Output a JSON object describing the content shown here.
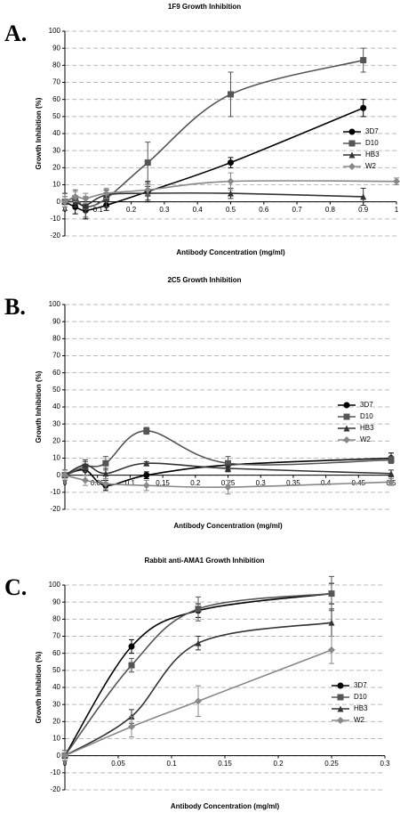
{
  "chart_data": [
    {
      "type": "line",
      "panel_label": "A.",
      "title": "1F9 Growth Inhibition",
      "x_label": "Antibody Concentration (mg/ml)",
      "y_label": "Growth Inhibition (%)",
      "xlim": [
        0,
        1
      ],
      "xticks": [
        0,
        0.1,
        0.2,
        0.3,
        0.4,
        0.5,
        0.6,
        0.7,
        0.8,
        0.9,
        1
      ],
      "ylim": [
        -20,
        100
      ],
      "yticks": [
        -20,
        -10,
        0,
        10,
        20,
        30,
        40,
        50,
        60,
        70,
        80,
        90,
        100
      ],
      "grid": true,
      "legend": "right",
      "series": [
        {
          "name": "3D7",
          "color": "#000000",
          "marker": "circle",
          "x": [
            0,
            0.03125,
            0.0625,
            0.125,
            0.25,
            0.5,
            0.9
          ],
          "values": [
            0,
            -3,
            -5,
            -2,
            6,
            23,
            55
          ],
          "errors": [
            5,
            4,
            5,
            3,
            6,
            3,
            5
          ]
        },
        {
          "name": "D10",
          "color": "#555555",
          "marker": "square",
          "x": [
            0,
            0.03125,
            0.0625,
            0.125,
            0.25,
            0.5,
            0.9
          ],
          "values": [
            0,
            2,
            -3,
            2,
            23,
            63,
            83
          ],
          "errors": [
            5,
            5,
            6,
            5,
            12,
            13,
            7
          ]
        },
        {
          "name": "HB3",
          "color": "#333333",
          "marker": "triangle",
          "x": [
            0,
            0.03125,
            0.0625,
            0.125,
            0.25,
            0.5,
            0.9
          ],
          "values": [
            0,
            0,
            -2,
            4,
            5,
            5,
            3
          ],
          "errors": [
            3,
            3,
            4,
            3,
            4,
            3,
            5
          ]
        },
        {
          "name": "W2",
          "color": "#888888",
          "marker": "diamond",
          "x": [
            0,
            0.03125,
            0.0625,
            0.125,
            0.25,
            0.5,
            1
          ],
          "values": [
            0,
            3,
            2,
            5,
            7,
            12,
            12
          ],
          "errors": [
            3,
            3,
            3,
            3,
            3,
            5,
            2
          ]
        }
      ]
    },
    {
      "type": "line",
      "panel_label": "B.",
      "title": "2C5 Growth Inhibition",
      "x_label": "Antibody Concentration (mg/ml)",
      "y_label": "Growth Inhibition (%)",
      "xlim": [
        0,
        0.5
      ],
      "xticks": [
        0,
        0.05,
        0.1,
        0.15,
        0.2,
        0.25,
        0.3,
        0.35,
        0.4,
        0.45,
        0.5
      ],
      "ylim": [
        -20,
        100
      ],
      "yticks": [
        -20,
        -10,
        0,
        10,
        20,
        30,
        40,
        50,
        60,
        70,
        80,
        90,
        100
      ],
      "grid": true,
      "legend": "right",
      "series": [
        {
          "name": "3D7",
          "color": "#000000",
          "marker": "circle",
          "x": [
            0,
            0.03125,
            0.0625,
            0.125,
            0.25,
            0.5
          ],
          "values": [
            0,
            3,
            -6,
            0,
            6,
            10
          ],
          "errors": [
            3,
            3,
            3,
            2,
            2,
            3
          ]
        },
        {
          "name": "D10",
          "color": "#555555",
          "marker": "square",
          "x": [
            0,
            0.03125,
            0.0625,
            0.125,
            0.25,
            0.5
          ],
          "values": [
            0,
            5,
            7,
            26,
            7,
            9
          ],
          "errors": [
            3,
            3,
            4,
            2,
            4,
            2
          ]
        },
        {
          "name": "HB3",
          "color": "#333333",
          "marker": "triangle",
          "x": [
            0,
            0.03125,
            0.0625,
            0.125,
            0.25,
            0.5
          ],
          "values": [
            0,
            6,
            1,
            7,
            4,
            1
          ],
          "errors": [
            3,
            3,
            3,
            1,
            2,
            2
          ]
        },
        {
          "name": "W2",
          "color": "#888888",
          "marker": "diamond",
          "x": [
            0,
            0.03125,
            0.0625,
            0.125,
            0.25,
            0.5
          ],
          "values": [
            0,
            -3,
            -5,
            -6,
            -7,
            -4
          ],
          "errors": [
            3,
            3,
            3,
            3,
            4,
            2
          ]
        }
      ]
    },
    {
      "type": "line",
      "panel_label": "C.",
      "title": "Rabbit anti-AMA1 Growth Inhibition",
      "x_label": "Antibody Concentration (mg/ml)",
      "y_label": "Growth Inhibition (%)",
      "xlim": [
        0,
        0.3
      ],
      "xticks": [
        0,
        0.05,
        0.1,
        0.15,
        0.2,
        0.25,
        0.3
      ],
      "ylim": [
        -20,
        100
      ],
      "yticks": [
        -20,
        -10,
        0,
        10,
        20,
        30,
        40,
        50,
        60,
        70,
        80,
        90,
        100
      ],
      "grid": true,
      "legend": "right",
      "series": [
        {
          "name": "3D7",
          "color": "#000000",
          "marker": "circle",
          "x": [
            0,
            0.0625,
            0.125,
            0.25
          ],
          "values": [
            0,
            64,
            85,
            95
          ],
          "errors": [
            3,
            4,
            4,
            6
          ]
        },
        {
          "name": "D10",
          "color": "#555555",
          "marker": "square",
          "x": [
            0,
            0.0625,
            0.125,
            0.25
          ],
          "values": [
            0,
            53,
            86,
            95
          ],
          "errors": [
            3,
            4,
            7,
            10
          ]
        },
        {
          "name": "HB3",
          "color": "#333333",
          "marker": "triangle",
          "x": [
            0,
            0.0625,
            0.125,
            0.25
          ],
          "values": [
            0,
            23,
            66,
            78
          ],
          "errors": [
            3,
            4,
            4,
            8
          ]
        },
        {
          "name": "W2",
          "color": "#888888",
          "marker": "diamond",
          "x": [
            0,
            0.0625,
            0.125,
            0.25
          ],
          "values": [
            0,
            17,
            32,
            62
          ],
          "errors": [
            3,
            6,
            9,
            8
          ]
        }
      ]
    }
  ]
}
